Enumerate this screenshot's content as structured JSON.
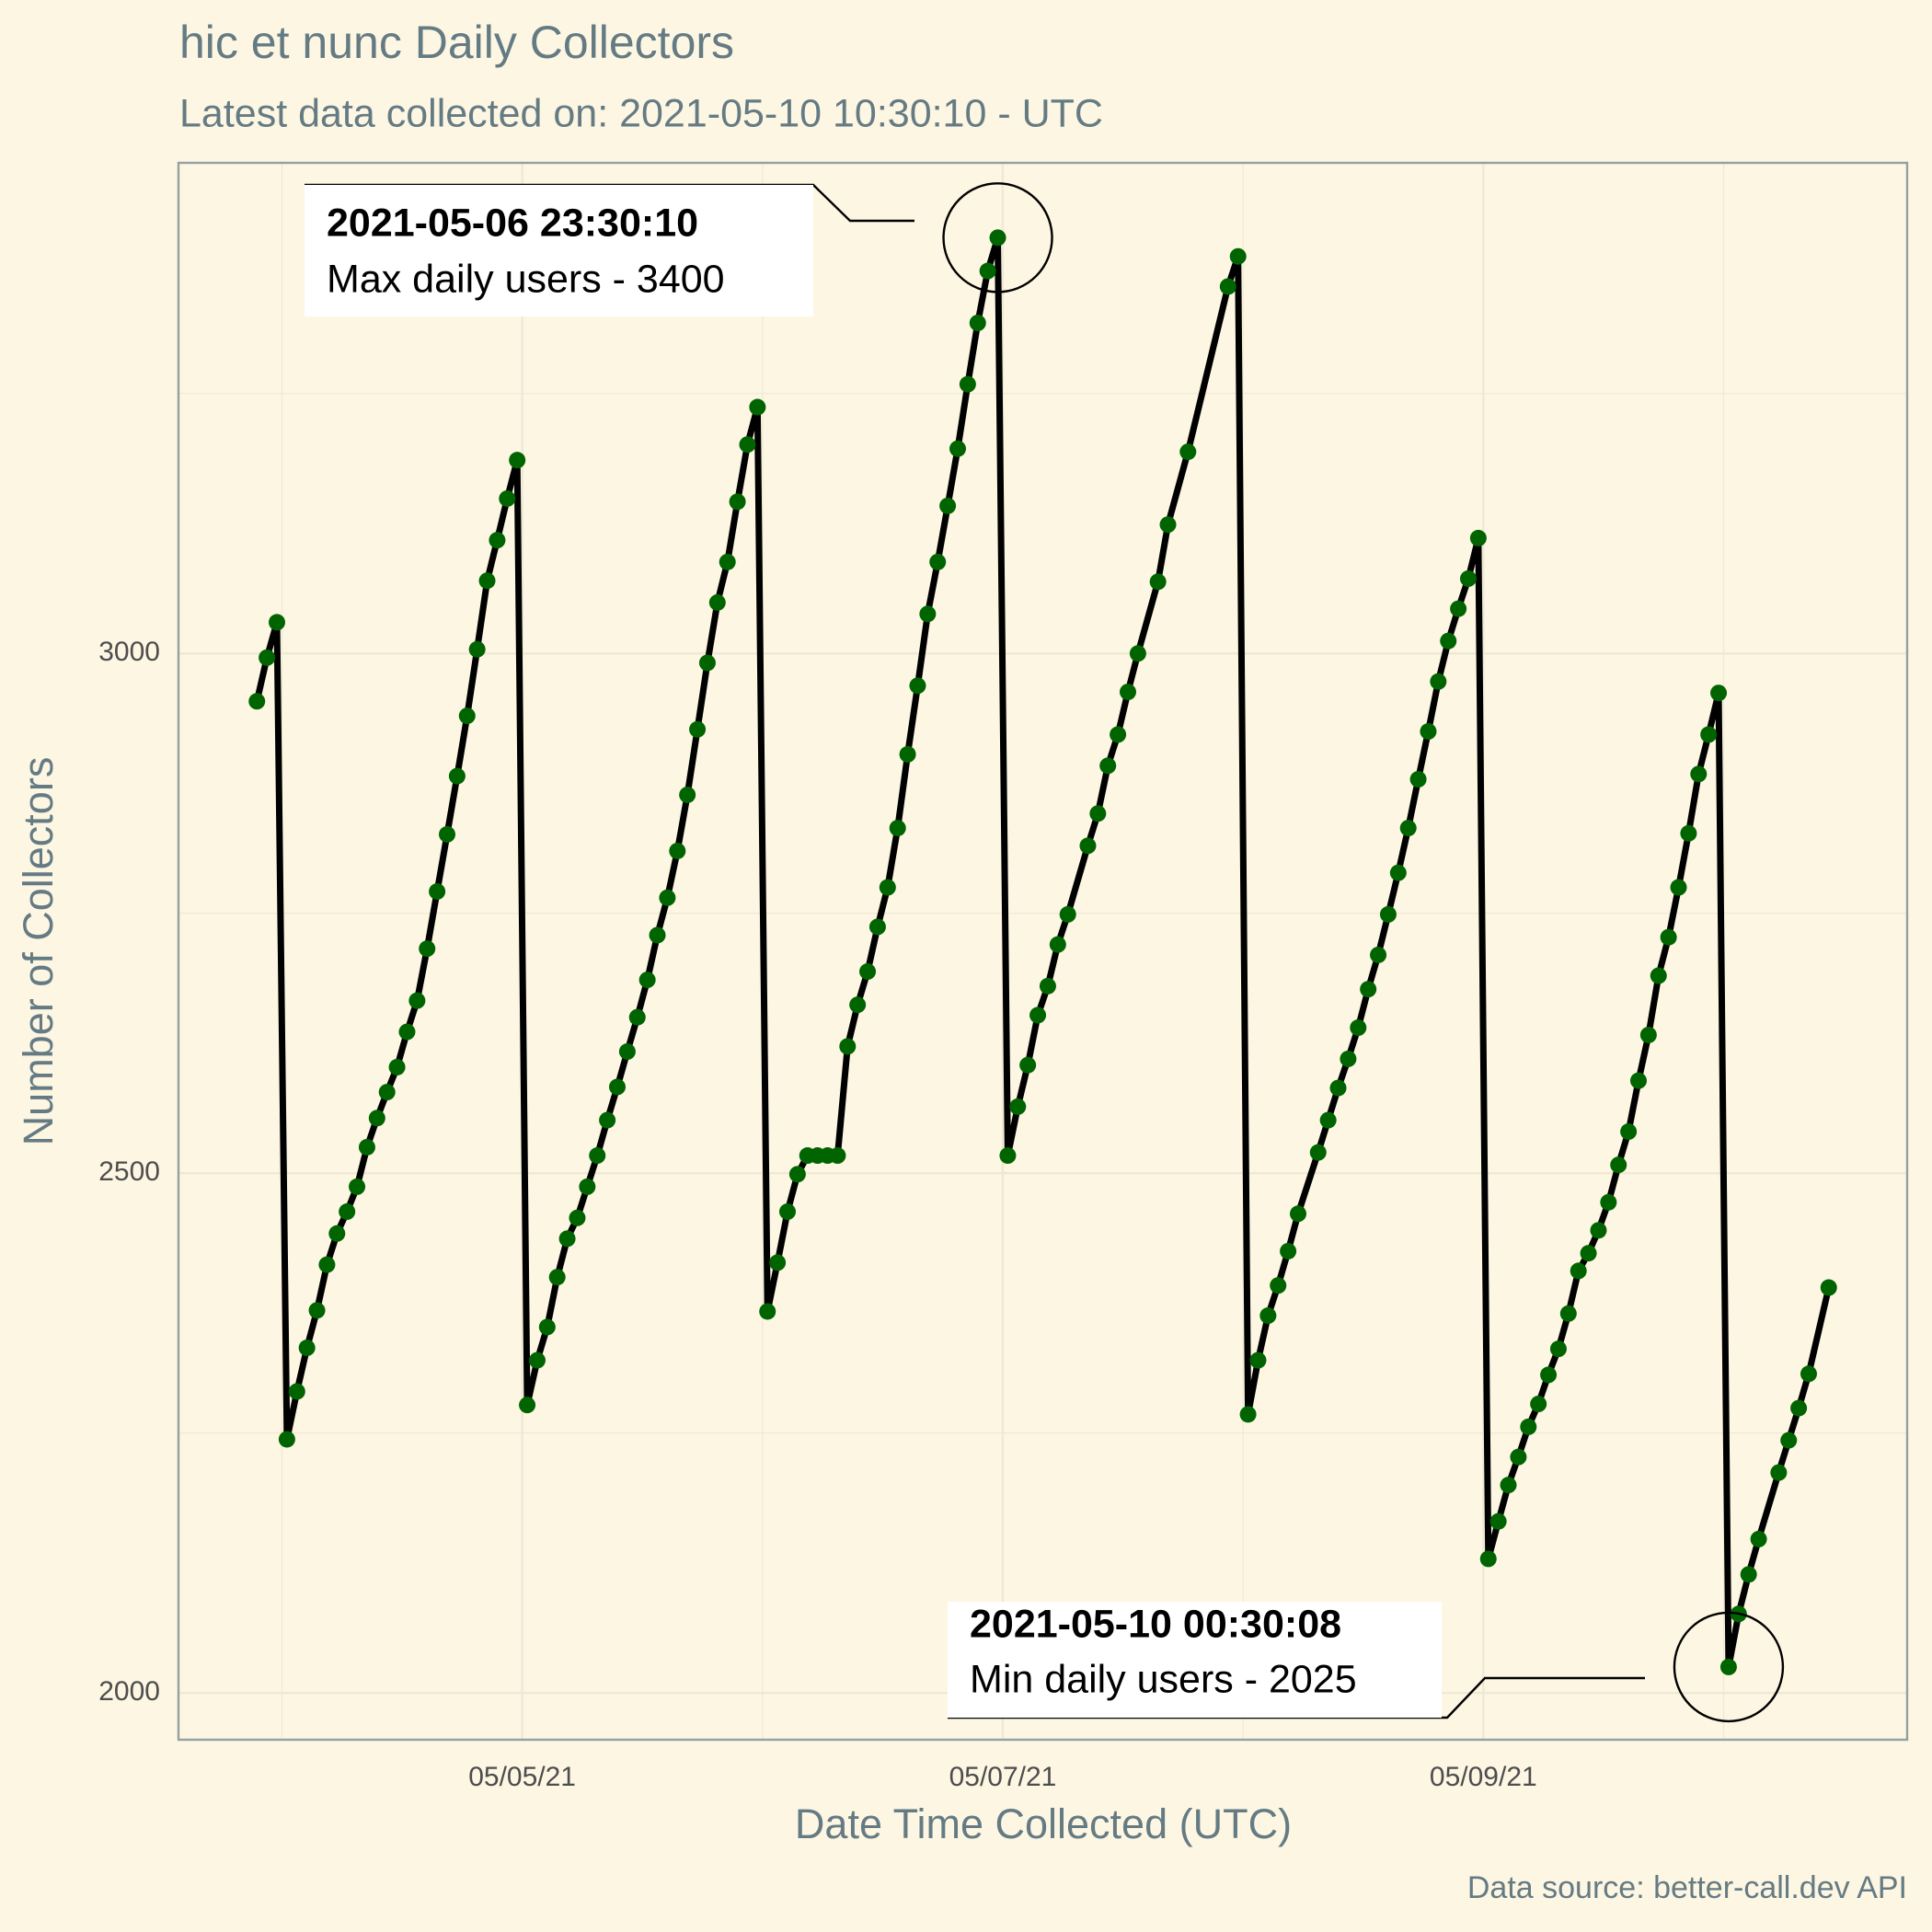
{
  "chart_data": {
    "type": "line",
    "title": "hic et nunc Daily Collectors",
    "subtitle": "Latest data collected on: 2021-05-10 10:30:10  - UTC",
    "x_label": "Date Time Collected (UTC)",
    "y_label": "Number of Collectors",
    "caption": "Data source: better-call.dev API",
    "line_color": "#000000",
    "point_color": "#006400",
    "grid": true,
    "xlim": [
      "2021-05-03 13:40",
      "2021-05-10 18:20"
    ],
    "xticks": [
      {
        "value": "2021-05-05",
        "label": "05/05/21"
      },
      {
        "value": "2021-05-07",
        "label": "05/07/21"
      },
      {
        "value": "2021-05-09",
        "label": "05/09/21"
      }
    ],
    "xminorticks": [
      "2021-05-04",
      "2021-05-06",
      "2021-05-08",
      "2021-05-10"
    ],
    "ylim": [
      1955,
      3472
    ],
    "yticks": [
      2000,
      2500,
      3000
    ],
    "yminorticks": [
      2250,
      2750,
      3250
    ],
    "annotations": [
      {
        "title": "2021-05-06 23:30:10",
        "text": "Max daily users - 3400"
      },
      {
        "title": "2021-05-10 00:30:08",
        "text": "Min daily users - 2025"
      }
    ],
    "x": [
      "2021-05-03 21:30",
      "2021-05-03 22:30",
      "2021-05-03 23:30",
      "2021-05-04 00:30",
      "2021-05-04 01:30",
      "2021-05-04 02:30",
      "2021-05-04 03:30",
      "2021-05-04 04:30",
      "2021-05-04 05:30",
      "2021-05-04 06:30",
      "2021-05-04 07:30",
      "2021-05-04 08:30",
      "2021-05-04 09:30",
      "2021-05-04 10:30",
      "2021-05-04 11:30",
      "2021-05-04 12:30",
      "2021-05-04 13:30",
      "2021-05-04 14:30",
      "2021-05-04 15:30",
      "2021-05-04 16:30",
      "2021-05-04 17:30",
      "2021-05-04 18:30",
      "2021-05-04 19:30",
      "2021-05-04 20:30",
      "2021-05-04 21:30",
      "2021-05-04 22:30",
      "2021-05-04 23:30",
      "2021-05-05 00:30",
      "2021-05-05 01:30",
      "2021-05-05 02:30",
      "2021-05-05 03:30",
      "2021-05-05 04:30",
      "2021-05-05 05:30",
      "2021-05-05 06:30",
      "2021-05-05 07:30",
      "2021-05-05 08:30",
      "2021-05-05 09:30",
      "2021-05-05 10:30",
      "2021-05-05 11:30",
      "2021-05-05 12:30",
      "2021-05-05 13:30",
      "2021-05-05 14:30",
      "2021-05-05 15:30",
      "2021-05-05 16:30",
      "2021-05-05 17:30",
      "2021-05-05 18:30",
      "2021-05-05 19:30",
      "2021-05-05 20:30",
      "2021-05-05 21:30",
      "2021-05-05 22:30",
      "2021-05-05 23:30",
      "2021-05-06 00:30",
      "2021-05-06 01:30",
      "2021-05-06 02:30",
      "2021-05-06 03:30",
      "2021-05-06 04:30",
      "2021-05-06 05:30",
      "2021-05-06 06:30",
      "2021-05-06 07:30",
      "2021-05-06 08:30",
      "2021-05-06 09:30",
      "2021-05-06 10:30",
      "2021-05-06 11:30",
      "2021-05-06 12:30",
      "2021-05-06 13:30",
      "2021-05-06 14:30",
      "2021-05-06 15:30",
      "2021-05-06 16:30",
      "2021-05-06 17:30",
      "2021-05-06 18:30",
      "2021-05-06 19:30",
      "2021-05-06 20:30",
      "2021-05-06 21:30",
      "2021-05-06 22:30",
      "2021-05-06 23:30",
      "2021-05-07 00:30",
      "2021-05-07 01:30",
      "2021-05-07 02:30",
      "2021-05-07 03:30",
      "2021-05-07 04:30",
      "2021-05-07 05:30",
      "2021-05-07 06:30",
      "2021-05-07 08:30",
      "2021-05-07 09:30",
      "2021-05-07 10:30",
      "2021-05-07 11:30",
      "2021-05-07 12:30",
      "2021-05-07 13:30",
      "2021-05-07 15:30",
      "2021-05-07 16:30",
      "2021-05-07 18:30",
      "2021-05-07 22:30",
      "2021-05-07 23:30",
      "2021-05-08 00:30",
      "2021-05-08 01:30",
      "2021-05-08 02:30",
      "2021-05-08 03:30",
      "2021-05-08 04:30",
      "2021-05-08 05:30",
      "2021-05-08 07:30",
      "2021-05-08 08:30",
      "2021-05-08 09:30",
      "2021-05-08 10:30",
      "2021-05-08 11:30",
      "2021-05-08 12:30",
      "2021-05-08 13:30",
      "2021-05-08 14:30",
      "2021-05-08 15:30",
      "2021-05-08 16:30",
      "2021-05-08 17:30",
      "2021-05-08 18:30",
      "2021-05-08 19:30",
      "2021-05-08 20:30",
      "2021-05-08 21:30",
      "2021-05-08 22:30",
      "2021-05-08 23:30",
      "2021-05-09 00:30",
      "2021-05-09 01:30",
      "2021-05-09 02:30",
      "2021-05-09 03:30",
      "2021-05-09 04:30",
      "2021-05-09 05:30",
      "2021-05-09 06:30",
      "2021-05-09 07:30",
      "2021-05-09 08:30",
      "2021-05-09 09:30",
      "2021-05-09 10:30",
      "2021-05-09 11:30",
      "2021-05-09 12:30",
      "2021-05-09 13:30",
      "2021-05-09 14:30",
      "2021-05-09 15:30",
      "2021-05-09 16:30",
      "2021-05-09 17:30",
      "2021-05-09 18:30",
      "2021-05-09 19:30",
      "2021-05-09 20:30",
      "2021-05-09 21:30",
      "2021-05-09 22:30",
      "2021-05-09 23:30",
      "2021-05-10 00:30",
      "2021-05-10 01:30",
      "2021-05-10 02:30",
      "2021-05-10 03:30",
      "2021-05-10 05:30",
      "2021-05-10 06:30",
      "2021-05-10 07:30",
      "2021-05-10 08:30",
      "2021-05-10 10:30"
    ],
    "values": [
      2954,
      2996,
      3030,
      2244,
      2290,
      2332,
      2368,
      2412,
      2442,
      2463,
      2487,
      2525,
      2553,
      2578,
      2602,
      2636,
      2666,
      2716,
      2771,
      2826,
      2882,
      2940,
      3004,
      3070,
      3109,
      3149,
      3186,
      2277,
      2320,
      2352,
      2400,
      2437,
      2457,
      2487,
      2517,
      2551,
      2583,
      2617,
      2650,
      2686,
      2729,
      2765,
      2810,
      2864,
      2927,
      2991,
      3049,
      3088,
      3146,
      3201,
      3237,
      2367,
      2414,
      2463,
      2499,
      2517,
      2517,
      2517,
      2517,
      2622,
      2662,
      2694,
      2737,
      2775,
      2832,
      2903,
      2969,
      3038,
      3088,
      3142,
      3197,
      3259,
      3318,
      3368,
      3400,
      2517,
      2564,
      2604,
      2652,
      2680,
      2720,
      2749,
      2815,
      2846,
      2892,
      2922,
      2963,
      3000,
      3069,
      3124,
      3194,
      3353,
      3382,
      2268,
      2320,
      2363,
      2392,
      2425,
      2461,
      2520,
      2551,
      2582,
      2610,
      2640,
      2677,
      2710,
      2749,
      2789,
      2832,
      2879,
      2925,
      2973,
      3012,
      3043,
      3072,
      3111,
      2129,
      2165,
      2200,
      2227,
      2256,
      2278,
      2306,
      2331,
      2365,
      2406,
      2423,
      2445,
      2472,
      2508,
      2540,
      2589,
      2633,
      2690,
      2727,
      2775,
      2827,
      2884,
      2922,
      2962,
      2025,
      2076,
      2114,
      2148,
      2212,
      2243,
      2274,
      2307,
      2390
    ]
  }
}
